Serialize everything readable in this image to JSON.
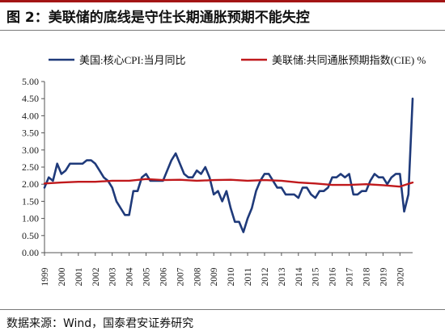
{
  "figure": {
    "title": "图 2：美联储的底线是守住长期通胀预期不能失控",
    "source": "数据来源：Wind，国泰君安证券研究"
  },
  "colors": {
    "series_core_cpi": "#1f3a7a",
    "series_cie": "#c0191c",
    "title_rule": "#a31515",
    "axis": "#555555"
  },
  "chart_data": {
    "type": "line",
    "title": "",
    "xlabel": "",
    "ylabel": "",
    "ylim": [
      0.0,
      5.0
    ],
    "xlim": [
      1999.0,
      2020.75
    ],
    "y_ticks": [
      "0.00",
      "0.50",
      "1.00",
      "1.50",
      "2.00",
      "2.50",
      "3.00",
      "3.50",
      "4.00",
      "4.50",
      "5.00"
    ],
    "x_ticks": [
      "1999",
      "2000",
      "2001",
      "2002",
      "2003",
      "2004",
      "2005",
      "2006",
      "2007",
      "2008",
      "2009",
      "2010",
      "2011",
      "2012",
      "2013",
      "2014",
      "2015",
      "2016",
      "2017",
      "2018",
      "2019",
      "2020"
    ],
    "grid": false,
    "legend": "top",
    "series": [
      {
        "name": "美国:核心CPI:当月同比",
        "color_key": "series_core_cpi",
        "x": [
          1999.0,
          1999.25,
          1999.5,
          1999.75,
          2000.0,
          2000.25,
          2000.5,
          2000.75,
          2001.0,
          2001.25,
          2001.5,
          2001.75,
          2002.0,
          2002.25,
          2002.5,
          2002.75,
          2003.0,
          2003.25,
          2003.5,
          2003.75,
          2004.0,
          2004.25,
          2004.5,
          2004.75,
          2005.0,
          2005.25,
          2005.5,
          2005.75,
          2006.0,
          2006.25,
          2006.5,
          2006.75,
          2007.0,
          2007.25,
          2007.5,
          2007.75,
          2008.0,
          2008.25,
          2008.5,
          2008.75,
          2009.0,
          2009.25,
          2009.5,
          2009.75,
          2010.0,
          2010.25,
          2010.5,
          2010.75,
          2011.0,
          2011.25,
          2011.5,
          2011.75,
          2012.0,
          2012.25,
          2012.5,
          2012.75,
          2013.0,
          2013.25,
          2013.5,
          2013.75,
          2014.0,
          2014.25,
          2014.5,
          2014.75,
          2015.0,
          2015.25,
          2015.5,
          2015.75,
          2016.0,
          2016.25,
          2016.5,
          2016.75,
          2017.0,
          2017.25,
          2017.5,
          2017.75,
          2018.0,
          2018.25,
          2018.5,
          2018.75,
          2019.0,
          2019.25,
          2019.5,
          2019.75,
          2020.0,
          2020.25,
          2020.5,
          2020.75
        ],
        "values": [
          1.9,
          2.2,
          2.1,
          2.6,
          2.3,
          2.4,
          2.6,
          2.6,
          2.6,
          2.6,
          2.7,
          2.7,
          2.6,
          2.4,
          2.2,
          2.1,
          1.9,
          1.5,
          1.3,
          1.1,
          1.1,
          1.8,
          1.8,
          2.2,
          2.3,
          2.1,
          2.1,
          2.1,
          2.1,
          2.4,
          2.7,
          2.9,
          2.6,
          2.3,
          2.2,
          2.2,
          2.4,
          2.3,
          2.5,
          2.2,
          1.7,
          1.8,
          1.5,
          1.8,
          1.3,
          0.9,
          0.9,
          0.6,
          1.0,
          1.3,
          1.8,
          2.1,
          2.3,
          2.3,
          2.1,
          1.9,
          1.9,
          1.7,
          1.7,
          1.7,
          1.6,
          1.9,
          1.9,
          1.7,
          1.6,
          1.8,
          1.8,
          1.9,
          2.2,
          2.2,
          2.3,
          2.2,
          2.3,
          1.7,
          1.7,
          1.8,
          1.8,
          2.1,
          2.3,
          2.2,
          2.2,
          2.0,
          2.2,
          2.3,
          2.3,
          1.2,
          1.7,
          4.5
        ]
      },
      {
        "name": "美联储:共同通胀预期指数(CIE) %",
        "color_key": "series_cie",
        "x": [
          1999.0,
          2000.0,
          2001.0,
          2002.0,
          2003.0,
          2004.0,
          2005.0,
          2006.0,
          2007.0,
          2008.0,
          2009.0,
          2010.0,
          2011.0,
          2012.0,
          2013.0,
          2014.0,
          2015.0,
          2016.0,
          2017.0,
          2018.0,
          2019.0,
          2020.0,
          2020.75
        ],
        "values": [
          2.02,
          2.05,
          2.07,
          2.07,
          2.1,
          2.1,
          2.15,
          2.12,
          2.13,
          2.1,
          2.12,
          2.13,
          2.1,
          2.12,
          2.1,
          2.05,
          2.02,
          1.98,
          1.98,
          2.0,
          1.97,
          1.93,
          2.05
        ]
      }
    ]
  }
}
